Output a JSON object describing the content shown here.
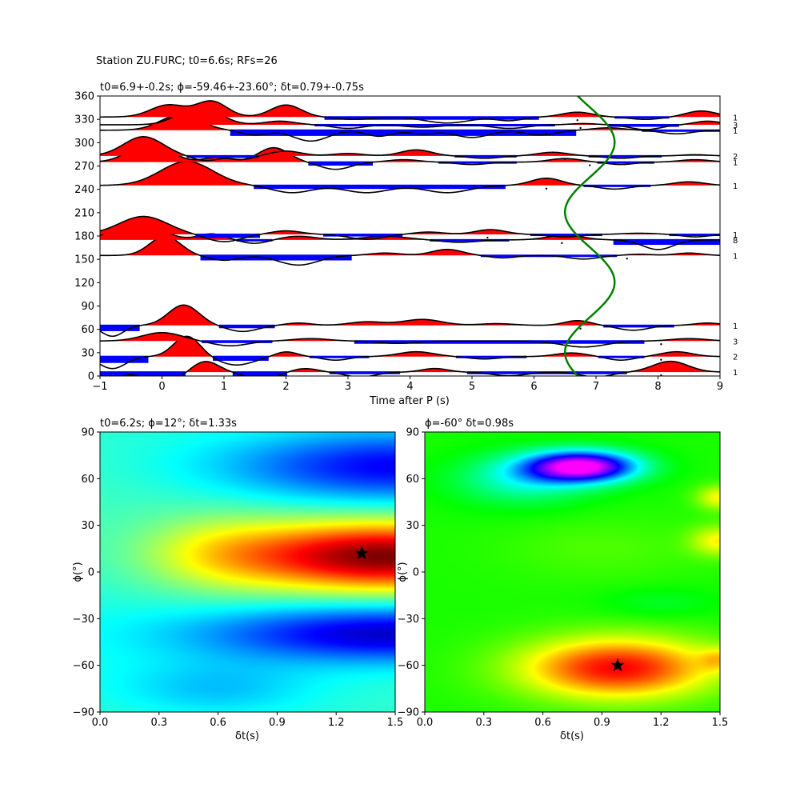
{
  "figure_title": "Station ZU.FURC; t0=6.6s; RFs=26",
  "chart_data": [
    {
      "type": "line",
      "panel": "receiver-functions",
      "title": "t0=6.9+-0.2s; ϕ=-59.46+-23.60°; δt=0.79+-0.75s",
      "xlabel": "Time after P (s)",
      "ylabel": "",
      "xlim": [
        -1,
        9
      ],
      "ylim": [
        0,
        360
      ],
      "xticks": [
        -1,
        0,
        1,
        2,
        3,
        4,
        5,
        6,
        7,
        8,
        9
      ],
      "yticks": [
        0,
        30,
        60,
        90,
        120,
        150,
        180,
        210,
        240,
        270,
        300,
        330,
        360
      ],
      "grid": false,
      "positive_fill_color": "#ff0000",
      "negative_fill_color": "#0000ff",
      "trace_color": "#000000",
      "traces": [
        {
          "baz": 5,
          "count": "1",
          "pulses": [
            [
              -0.9,
              -0.9,
              0.25
            ],
            [
              0.0,
              -1.1,
              0.35
            ],
            [
              0.7,
              0.9,
              0.3
            ],
            [
              1.6,
              -0.6,
              0.35
            ],
            [
              2.3,
              0.3,
              0.3
            ],
            [
              3.2,
              -0.4,
              0.35
            ],
            [
              4.4,
              0.3,
              0.3
            ],
            [
              5.6,
              -0.3,
              0.4
            ],
            [
              7.0,
              -0.4,
              0.35
            ],
            [
              8.2,
              0.9,
              0.4
            ]
          ]
        },
        {
          "baz": 25,
          "count": "2",
          "pulses": [
            [
              -0.8,
              -1.0,
              0.3
            ],
            [
              0.4,
              1.7,
              0.3
            ],
            [
              1.2,
              -0.7,
              0.4
            ],
            [
              2.0,
              0.4,
              0.25
            ],
            [
              2.8,
              -0.3,
              0.3
            ],
            [
              4.1,
              0.4,
              0.4
            ],
            [
              5.2,
              -0.2,
              0.35
            ],
            [
              6.6,
              0.3,
              0.35
            ],
            [
              7.4,
              -0.3,
              0.3
            ],
            [
              8.3,
              0.4,
              0.35
            ]
          ]
        },
        {
          "baz": 45,
          "count": "3",
          "pulses": [
            [
              0.0,
              0.7,
              0.45
            ],
            [
              1.1,
              -0.4,
              0.4
            ],
            [
              2.4,
              0.2,
              0.4
            ],
            [
              3.8,
              -0.2,
              0.4
            ],
            [
              6.8,
              -0.5,
              0.5
            ],
            [
              8.5,
              0.2,
              0.4
            ]
          ]
        },
        {
          "baz": 65,
          "count": "1",
          "pulses": [
            [
              -0.8,
              -0.9,
              0.25
            ],
            [
              0.35,
              1.7,
              0.35
            ],
            [
              1.3,
              -0.5,
              0.35
            ],
            [
              2.2,
              0.2,
              0.3
            ],
            [
              3.3,
              0.3,
              0.4
            ],
            [
              4.2,
              0.5,
              0.45
            ],
            [
              5.4,
              0.15,
              0.4
            ],
            [
              6.7,
              0.4,
              0.3
            ],
            [
              7.6,
              -0.4,
              0.35
            ],
            [
              8.8,
              0.2,
              0.3
            ]
          ]
        },
        {
          "baz": 155,
          "count": "1",
          "pulses": [
            [
              0.05,
              1.6,
              0.35
            ],
            [
              1.0,
              -0.4,
              0.35
            ],
            [
              2.2,
              -0.8,
              0.45
            ],
            [
              3.6,
              0.2,
              0.35
            ],
            [
              4.6,
              0.5,
              0.35
            ],
            [
              5.5,
              -0.2,
              0.3
            ],
            [
              6.8,
              -0.3,
              0.35
            ],
            [
              7.7,
              0.1,
              0.3
            ],
            [
              8.5,
              0.2,
              0.3
            ]
          ]
        },
        {
          "baz": 175,
          "count": "8",
          "pulses": [
            [
              -0.4,
              1.6,
              0.5
            ],
            [
              0.8,
              0.5,
              0.3
            ],
            [
              1.5,
              -0.3,
              0.3
            ],
            [
              2.2,
              0.3,
              0.4
            ],
            [
              3.6,
              0.3,
              0.5
            ],
            [
              4.8,
              -0.2,
              0.4
            ],
            [
              6.5,
              0.4,
              0.4
            ],
            [
              8.0,
              -0.8,
              0.35
            ]
          ]
        },
        {
          "baz": 182,
          "count": "1",
          "pulses": [
            [
              -0.3,
              1.5,
              0.55
            ],
            [
              1.0,
              -0.6,
              0.4
            ],
            [
              2.0,
              0.3,
              0.35
            ],
            [
              3.3,
              -0.4,
              0.4
            ],
            [
              4.3,
              0.2,
              0.35
            ],
            [
              5.3,
              0.4,
              0.35
            ],
            [
              6.5,
              -0.2,
              0.35
            ],
            [
              7.7,
              0.1,
              0.4
            ],
            [
              8.6,
              -0.2,
              0.3
            ]
          ]
        },
        {
          "baz": 245,
          "count": "1",
          "pulses": [
            [
              0.4,
              2.0,
              0.6
            ],
            [
              2.1,
              -0.6,
              0.45
            ],
            [
              3.3,
              -0.6,
              0.5
            ],
            [
              4.6,
              -0.6,
              0.5
            ],
            [
              6.2,
              0.6,
              0.35
            ],
            [
              7.3,
              -0.3,
              0.35
            ],
            [
              8.5,
              0.3,
              0.35
            ]
          ]
        },
        {
          "baz": 275,
          "count": "1",
          "pulses": [
            [
              -0.2,
              1.6,
              0.45
            ],
            [
              0.9,
              0.4,
              0.3
            ],
            [
              1.8,
              1.2,
              0.35
            ],
            [
              2.8,
              -0.6,
              0.35
            ],
            [
              3.9,
              0.2,
              0.35
            ],
            [
              5.0,
              -0.2,
              0.35
            ],
            [
              6.5,
              0.3,
              0.35
            ],
            [
              7.4,
              -0.2,
              0.3
            ],
            [
              8.6,
              0.2,
              0.35
            ]
          ]
        },
        {
          "baz": 283,
          "count": "2",
          "pulses": [
            [
              -0.3,
              1.6,
              0.45
            ],
            [
              0.7,
              -0.4,
              0.3
            ],
            [
              1.3,
              -0.3,
              0.25
            ],
            [
              2.0,
              0.4,
              0.35
            ],
            [
              3.0,
              0.2,
              0.35
            ],
            [
              4.1,
              0.5,
              0.35
            ],
            [
              5.2,
              -0.2,
              0.35
            ],
            [
              6.3,
              0.3,
              0.35
            ],
            [
              7.4,
              -0.2,
              0.35
            ],
            [
              8.6,
              0.1,
              0.3
            ]
          ]
        },
        {
          "baz": 316,
          "count": "1",
          "pulses": [
            [
              0.3,
              1.3,
              0.45
            ],
            [
              1.5,
              -0.4,
              0.3
            ],
            [
              2.4,
              -0.9,
              0.4
            ],
            [
              3.5,
              -0.5,
              0.3
            ],
            [
              4.2,
              -0.3,
              0.3
            ],
            [
              5.0,
              -0.6,
              0.4
            ],
            [
              6.1,
              -0.4,
              0.35
            ],
            [
              7.2,
              0.2,
              0.35
            ],
            [
              8.3,
              -0.3,
              0.35
            ]
          ]
        },
        {
          "baz": 323,
          "count": "3",
          "pulses": [
            [
              0.6,
              1.6,
              0.45
            ],
            [
              1.9,
              0.3,
              0.35
            ],
            [
              3.0,
              -0.3,
              0.35
            ],
            [
              4.2,
              -0.2,
              0.4
            ],
            [
              5.6,
              -0.3,
              0.4
            ],
            [
              6.8,
              0.1,
              0.3
            ],
            [
              7.8,
              -0.4,
              0.35
            ],
            [
              8.8,
              0.3,
              0.3
            ]
          ]
        },
        {
          "baz": 333,
          "count": "1",
          "pulses": [
            [
              0.1,
              1.0,
              0.4
            ],
            [
              0.8,
              1.3,
              0.35
            ],
            [
              2.0,
              1.0,
              0.35
            ],
            [
              3.1,
              -0.2,
              0.4
            ],
            [
              4.6,
              -0.5,
              0.5
            ],
            [
              5.6,
              -0.3,
              0.3
            ],
            [
              6.7,
              0.4,
              0.35
            ],
            [
              7.8,
              -0.2,
              0.35
            ],
            [
              8.7,
              0.5,
              0.35
            ]
          ]
        }
      ],
      "trace_scale": 15,
      "markers": [
        {
          "baz": 5,
          "t": 8.05
        },
        {
          "baz": 25,
          "t": 8.05
        },
        {
          "baz": 45,
          "t": 8.05
        },
        {
          "baz": 65,
          "t": 6.75
        },
        {
          "baz": 155,
          "t": 7.5
        },
        {
          "baz": 175,
          "t": 6.45
        },
        {
          "baz": 182,
          "t": 5.25
        },
        {
          "baz": 245,
          "t": 6.2
        },
        {
          "baz": 275,
          "t": 6.9
        },
        {
          "baz": 283,
          "t": 6.5
        },
        {
          "baz": 316,
          "t": 6.2
        },
        {
          "baz": 323,
          "t": 6.75
        },
        {
          "baz": 333,
          "t": 6.7
        }
      ],
      "curve": {
        "color": "#008000",
        "description_t_of_baz": "t = 6.9 + 0.4*sin(2*(baz + 59.46))",
        "t0": 6.9,
        "amplitude": 0.4,
        "phi_deg": -59.46
      }
    },
    {
      "type": "heatmap",
      "panel": "grid-search-left",
      "title": "t0=6.2s; ϕ=12°; δt=1.33s",
      "xlabel": "δt(s)",
      "ylabel": "ϕ(°)",
      "xlim": [
        0.0,
        1.5
      ],
      "ylim": [
        -90,
        90
      ],
      "xticks": [
        "0.0",
        "0.3",
        "0.6",
        "0.9",
        "1.2",
        "1.5"
      ],
      "yticks": [
        "90",
        "60",
        "30",
        "0",
        "−30",
        "−60",
        "−90"
      ],
      "colormap": "jet",
      "best": {
        "dt": 1.33,
        "phi": 12
      },
      "marker_color": "#000000"
    },
    {
      "type": "heatmap",
      "panel": "grid-search-right",
      "title": "ϕ=-60° δt=0.98s",
      "xlabel": "δt(s)",
      "ylabel": "ϕ(°)",
      "xlim": [
        0.0,
        1.5
      ],
      "ylim": [
        -90,
        90
      ],
      "xticks": [
        "0.0",
        "0.3",
        "0.6",
        "0.9",
        "1.2",
        "1.5"
      ],
      "yticks": [
        "90",
        "60",
        "30",
        "0",
        "−30",
        "−60",
        "−90"
      ],
      "colormap": "gist_rainbow",
      "best": {
        "dt": 0.98,
        "phi": -60
      },
      "marker_color": "#000000"
    }
  ]
}
